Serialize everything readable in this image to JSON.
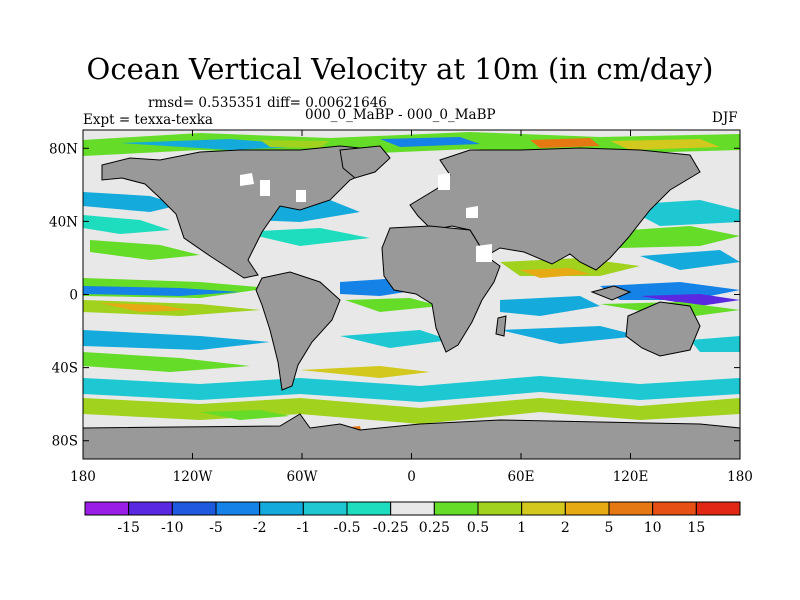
{
  "title": "Ocean Vertical Velocity at 10m (in cm/day)",
  "stats": "rmsd= 0.535351 diff= 0.00621646",
  "left_label": "Expt = texxa-texka",
  "center_label": "000_0_MaBP - 000_0_MaBP",
  "right_label": "DJF",
  "lat_ticks": [
    {
      "value": 80,
      "label": "80N"
    },
    {
      "value": 40,
      "label": "40N"
    },
    {
      "value": 0,
      "label": "0"
    },
    {
      "value": -40,
      "label": "40S"
    },
    {
      "value": -80,
      "label": "80S"
    }
  ],
  "lon_ticks": [
    {
      "value": -180,
      "label": "180"
    },
    {
      "value": -120,
      "label": "120W"
    },
    {
      "value": -60,
      "label": "60W"
    },
    {
      "value": 0,
      "label": "0"
    },
    {
      "value": 60,
      "label": "60E"
    },
    {
      "value": 120,
      "label": "120E"
    },
    {
      "value": 180,
      "label": "180"
    }
  ],
  "colorbar": {
    "labels": [
      "-15",
      "-10",
      "-5",
      "-2",
      "-1",
      "-0.5",
      "-0.25",
      "0.25",
      "0.5",
      "1",
      "2",
      "5",
      "10",
      "15"
    ],
    "colors": [
      "#9b1ee6",
      "#5a28e0",
      "#1e5ade",
      "#1482e6",
      "#14aadc",
      "#1ec8d2",
      "#1edcbe",
      "#e8e8e8",
      "#64dc28",
      "#a0d21e",
      "#d2c81e",
      "#e6aa14",
      "#e67814",
      "#e65014",
      "#e02814"
    ]
  },
  "colors": {
    "land": "#999999",
    "zero_band": "#e8e8e8"
  }
}
